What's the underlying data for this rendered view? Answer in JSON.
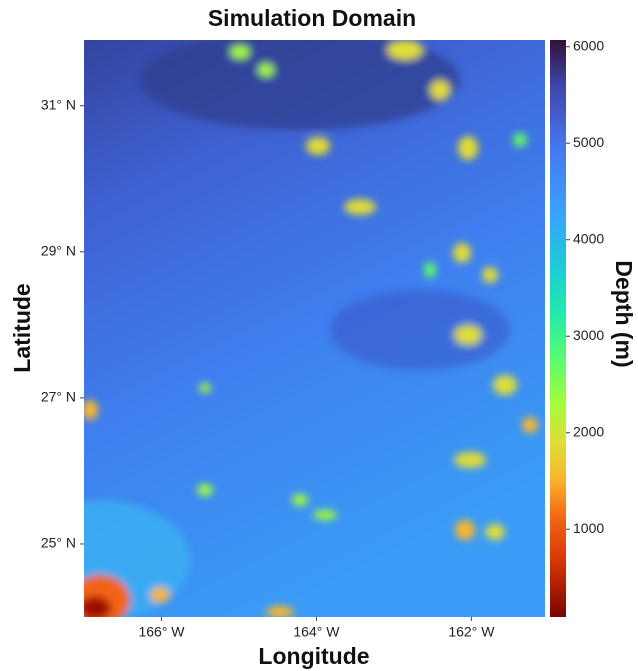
{
  "chart_data": {
    "type": "map",
    "title": "Simulation Domain",
    "x_label": "Longitude",
    "y_label": "Latitude",
    "xlim": [
      -167,
      -161.05
    ],
    "ylim": [
      24,
      31.9
    ],
    "xticks": [
      {
        "value": -166,
        "label": "166° W"
      },
      {
        "value": -164,
        "label": "164° W"
      },
      {
        "value": -162,
        "label": "162° W"
      }
    ],
    "yticks": [
      {
        "value": 25,
        "label": "25° N"
      },
      {
        "value": 27,
        "label": "27° N"
      },
      {
        "value": 29,
        "label": "29° N"
      },
      {
        "value": 31,
        "label": "31° N"
      }
    ],
    "colorbar": {
      "label": "Depth (m)",
      "lim": [
        90,
        6070
      ],
      "ticks": [
        1000,
        2000,
        3000,
        4000,
        5000,
        6000
      ]
    }
  }
}
